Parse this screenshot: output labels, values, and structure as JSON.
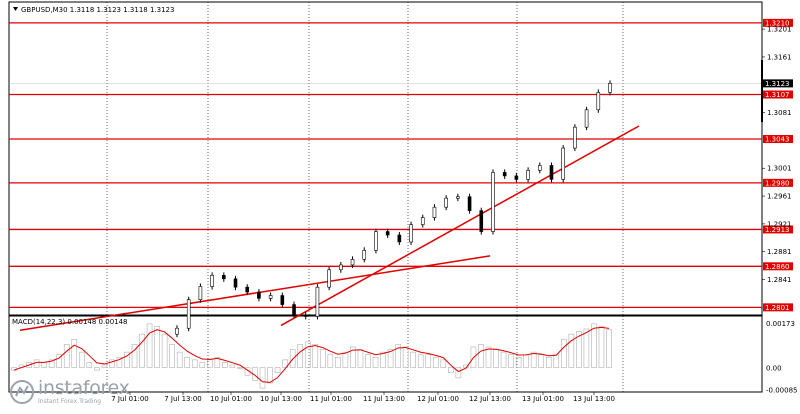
{
  "symbol_header": "GBPUSD,M30  1.3118 1.3123 1.3118 1.3123",
  "chart_data": {
    "type": "candlestick",
    "symbol": "GBPUSD",
    "timeframe": "M30",
    "ohlc_header": {
      "open": 1.3118,
      "high": 1.3123,
      "low": 1.3118,
      "close": 1.3123
    },
    "current_price": 1.3123,
    "y_range": [
      1.279,
      1.324
    ],
    "y_ticks": [
      "1.3201",
      "1.3161",
      "1.3081",
      "1.3001",
      "1.2961",
      "1.2921",
      "1.2881",
      "1.2841"
    ],
    "x_ticks": [
      "7 Jul 01:00",
      "7 Jul 13:00",
      "10 Jul 01:00",
      "10 Jul 13:00",
      "11 Jul 01:00",
      "11 Jul 13:00",
      "12 Jul 01:00",
      "12 Jul 13:00",
      "13 Jul 01:00",
      "13 Jul 13:00"
    ],
    "levels": [
      "1.3210",
      "1.3107",
      "1.3043",
      "1.2980",
      "1.2913",
      "1.2860",
      "1.2801"
    ],
    "level_color": "#e00000",
    "trendlines": [
      {
        "from": [
          "7 Jul 01:00",
          1.2781
        ],
        "to": [
          "12 Jul 13:00",
          1.2875
        ]
      },
      {
        "from": [
          "10 Jul 13:00",
          1.2775
        ],
        "to": [
          "13 Jul 13:00",
          1.3033
        ]
      }
    ],
    "price_path": [
      [
        "7 Jul 13:00",
        1.2771
      ],
      [
        "7 Jul 13:00",
        1.2812
      ],
      [
        "7 Jul 13:00",
        1.2831
      ],
      [
        "7 Jul 13:00",
        1.2847
      ],
      [
        "7 Jul 13:00",
        1.2842
      ],
      [
        "10 Jul 01:00",
        1.283
      ],
      [
        "10 Jul 01:00",
        1.2823
      ],
      [
        "10 Jul 01:00",
        1.2814
      ],
      [
        "10 Jul 01:00",
        1.2818
      ],
      [
        "10 Jul 13:00",
        1.2805
      ],
      [
        "10 Jul 13:00",
        1.279
      ],
      [
        "10 Jul 13:00",
        1.2788
      ],
      [
        "10 Jul 13:00",
        1.283
      ],
      [
        "11 Jul 01:00",
        1.2855
      ],
      [
        "11 Jul 01:00",
        1.2862
      ],
      [
        "11 Jul 01:00",
        1.287
      ],
      [
        "11 Jul 01:00",
        1.2883
      ],
      [
        "11 Jul 13:00",
        1.291
      ],
      [
        "11 Jul 13:00",
        1.2905
      ],
      [
        "11 Jul 13:00",
        1.2895
      ],
      [
        "11 Jul 13:00",
        1.292
      ],
      [
        "12 Jul 01:00",
        1.293
      ],
      [
        "12 Jul 01:00",
        1.2945
      ],
      [
        "12 Jul 01:00",
        1.2958
      ],
      [
        "12 Jul 01:00",
        1.296
      ],
      [
        "12 Jul 13:00",
        1.294
      ],
      [
        "12 Jul 13:00",
        1.291
      ],
      [
        "12 Jul 13:00",
        1.2995
      ],
      [
        "12 Jul 13:00",
        1.299
      ],
      [
        "13 Jul 01:00",
        1.2985
      ],
      [
        "13 Jul 01:00",
        1.2998
      ],
      [
        "13 Jul 01:00",
        1.3005
      ],
      [
        "13 Jul 01:00",
        1.2985
      ],
      [
        "13 Jul 01:00",
        1.303
      ],
      [
        "13 Jul 13:00",
        1.306
      ],
      [
        "13 Jul 13:00",
        1.3085
      ],
      [
        "13 Jul 13:00",
        1.311
      ],
      [
        "13 Jul 13:00",
        1.3123
      ]
    ],
    "macd": {
      "label": "MACD(14,22,3) 0.00148 0.00148",
      "y_ticks": [
        "0.00173",
        "0.00",
        "-0.00085"
      ],
      "y_range": [
        -0.00095,
        0.00185
      ],
      "histogram_color": "#b0b0b0",
      "signal_color": "#e00000",
      "values": [
        -0.0001,
        0.0001,
        0.0002,
        0.0003,
        0.0002,
        0.0003,
        0.0005,
        0.0009,
        0.0011,
        0.0006,
        0.0002,
        -0.0001,
        0.0001,
        0.0003,
        0.0004,
        0.0006,
        0.0009,
        0.0013,
        0.0017,
        0.0016,
        0.0013,
        0.0009,
        0.0006,
        0.0004,
        0.0003,
        0.0002,
        0.0003,
        0.0004,
        0.0002,
        0.0001,
        0.0,
        -0.0003,
        -0.0005,
        -0.0008,
        -0.0006,
        -0.0002,
        0.0003,
        0.0007,
        0.0009,
        0.001,
        0.0009,
        0.0007,
        0.0005,
        0.0004,
        0.0006,
        0.0008,
        0.0007,
        0.0005,
        0.0004,
        0.0006,
        0.0007,
        0.0009,
        0.0008,
        0.0006,
        0.0005,
        0.0005,
        0.0004,
        0.0003,
        -0.0002,
        -0.0004,
        0.0001,
        0.0008,
        0.0009,
        0.0008,
        0.0007,
        0.0006,
        0.0005,
        0.0004,
        0.0005,
        0.0006,
        0.0005,
        0.0004,
        0.0005,
        0.0011,
        0.0013,
        0.0014,
        0.0015,
        0.0017,
        0.0016,
        0.00148
      ]
    }
  },
  "watermark": {
    "name": "instaforex",
    "tagline": "Instant Forex Trading"
  }
}
